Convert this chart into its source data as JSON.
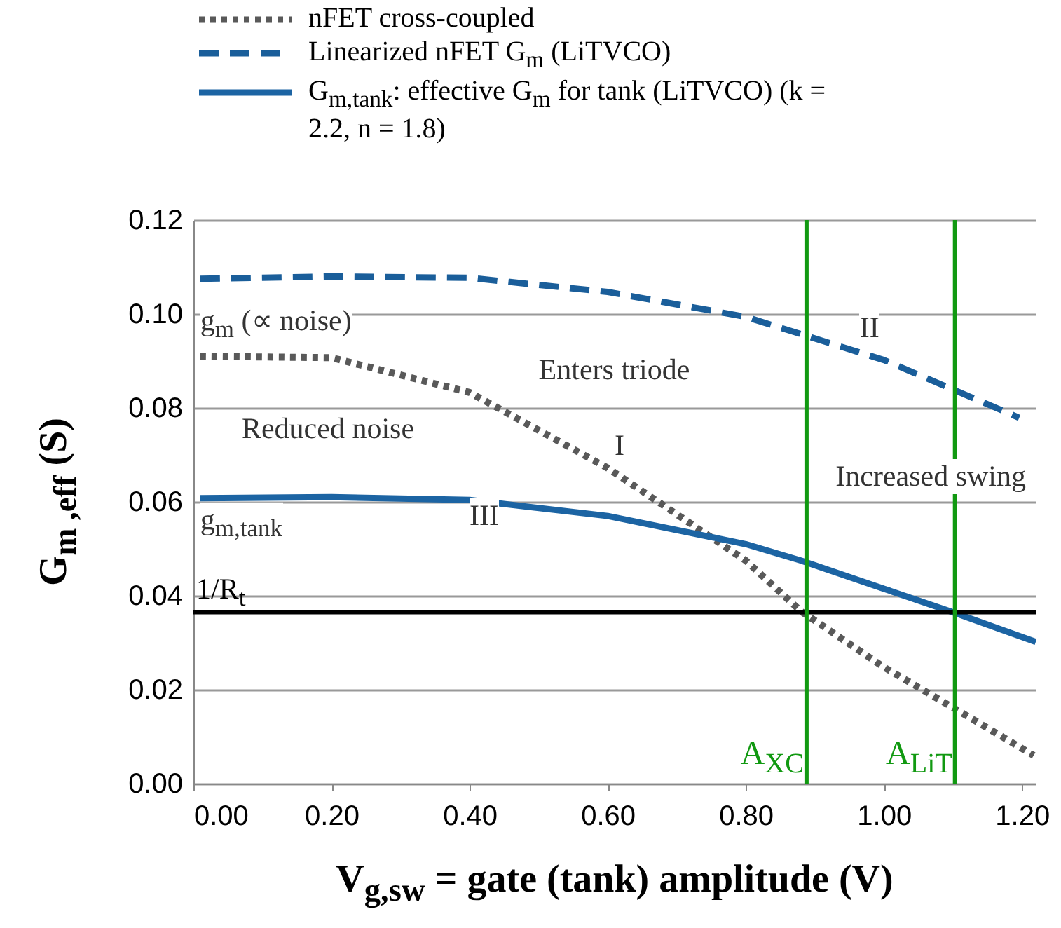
{
  "chart_data": {
    "type": "line",
    "xlabel": "V$_{g,sw}$ = gate (tank) amplitude  (V)",
    "ylabel": "G$_{m ,eff}$ (S)",
    "series": [
      {
        "name": "nFET cross-coupled",
        "color": "#595959",
        "line_style": "dotted",
        "x": [
          0.01,
          0.2,
          0.4,
          0.6,
          0.8,
          0.88,
          1.0,
          1.1,
          1.217
        ],
        "values": [
          0.091,
          0.0907,
          0.0833,
          0.0672,
          0.0475,
          0.0367,
          0.0248,
          0.0162,
          0.006
        ]
      },
      {
        "name": "Linearized nFET G$_{m}$ (LiTVCO)",
        "color": "#1a5e9a",
        "line_style": "dashed",
        "x": [
          0.01,
          0.2,
          0.4,
          0.6,
          0.8,
          1.0,
          1.196
        ],
        "values": [
          0.1075,
          0.108,
          0.1077,
          0.1047,
          0.0994,
          0.0902,
          0.0779
        ]
      },
      {
        "name": "G$_{m,tank}$: effective G$_{m}$ for tank (LiTVCO) (k = 2.2, n = 1.8)",
        "color": "#1c64a3",
        "line_style": "solid",
        "x": [
          0.01,
          0.2,
          0.4,
          0.6,
          0.8,
          0.88,
          1.0,
          1.1,
          1.22
        ],
        "values": [
          0.0608,
          0.061,
          0.0604,
          0.057,
          0.051,
          0.0475,
          0.0415,
          0.0365,
          0.0302
        ]
      }
    ],
    "xlim": [
      0,
      1.22
    ],
    "ylim": [
      0,
      0.12
    ],
    "xticks": [
      {
        "value": 0,
        "label": "0.00"
      },
      {
        "value": 0.2,
        "label": "0.20"
      },
      {
        "value": 0.4,
        "label": "0.40"
      },
      {
        "value": 0.6,
        "label": "0.60"
      },
      {
        "value": 0.8,
        "label": "0.80"
      },
      {
        "value": 1,
        "label": "1.00"
      },
      {
        "value": 1.2,
        "label": "1.20"
      }
    ],
    "yticks": [
      {
        "value": 0,
        "label": "0.00"
      },
      {
        "value": 0.02,
        "label": "0.02"
      },
      {
        "value": 0.04,
        "label": "0.04"
      },
      {
        "value": 0.06,
        "label": "0.06"
      },
      {
        "value": 0.08,
        "label": "0.08"
      },
      {
        "value": 0.1,
        "label": "0.10"
      },
      {
        "value": 0.12,
        "label": "0.12"
      }
    ],
    "ref_lines": [
      {
        "axis": "y",
        "value": 0.0365,
        "label": "1/R$_{t}$",
        "color": "#000000"
      },
      {
        "axis": "x",
        "value": 0.888,
        "label": "A$_{XC}$",
        "color": "#119911"
      },
      {
        "axis": "x",
        "value": 1.103,
        "label": "A$_{LiT}$",
        "color": "#119911"
      }
    ],
    "annotations": [
      "g$_{m}$ (∝ noise)",
      "Reduced noise",
      "g$_{m,tank}$",
      "Enters triode",
      "Increased swing",
      "I",
      "II",
      "III"
    ],
    "grid": "y",
    "legend": "top"
  }
}
